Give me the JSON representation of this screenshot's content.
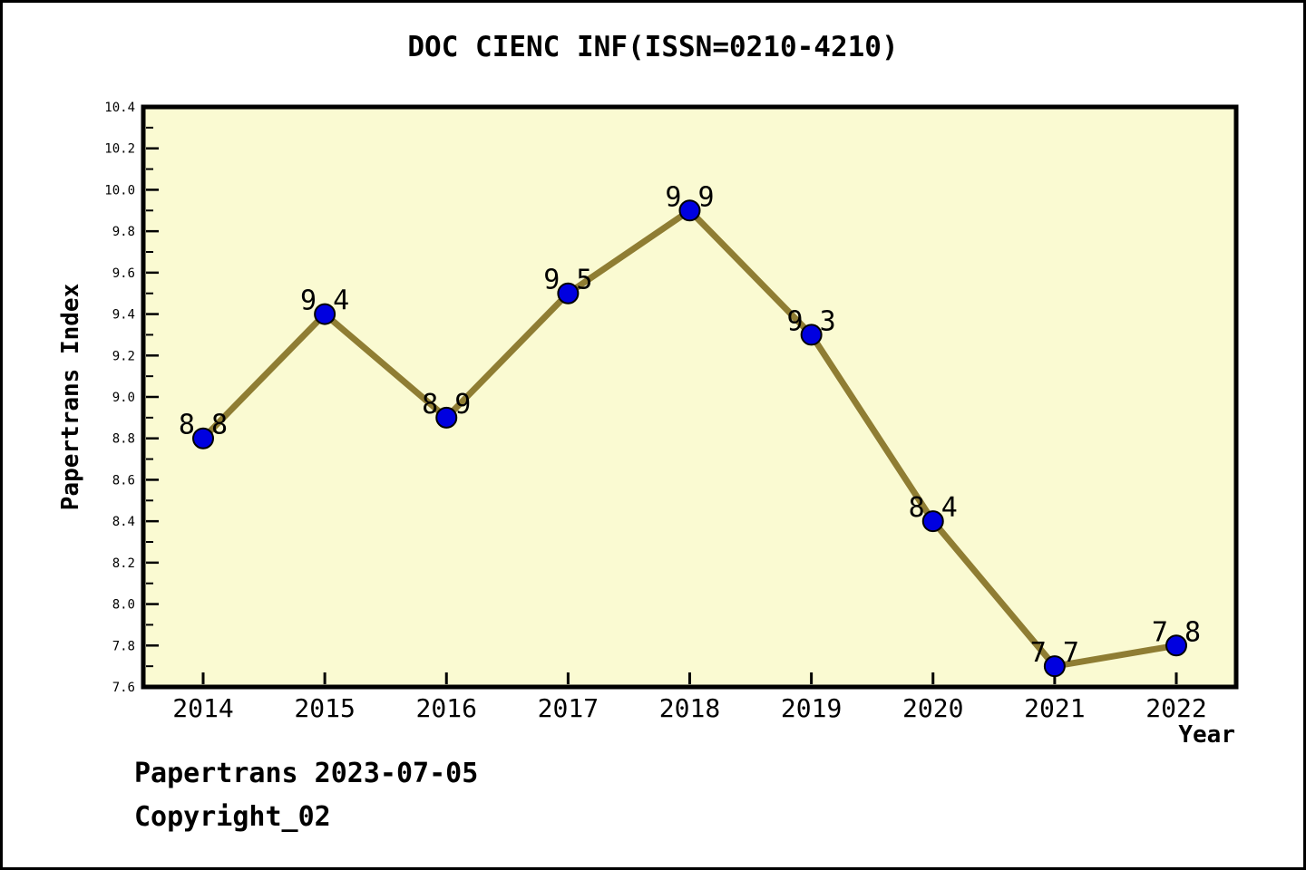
{
  "page": {
    "footer_line1": "Papertrans 2023-07-05",
    "footer_line2": "Copyright_02"
  },
  "chart_data": {
    "type": "line",
    "title": "DOC CIENC INF(ISSN=0210-4210)",
    "xlabel": "Year",
    "ylabel": "Papertrans Index",
    "categories": [
      "2014",
      "2015",
      "2016",
      "2017",
      "2018",
      "2019",
      "2020",
      "2021",
      "2022"
    ],
    "values": [
      8.8,
      9.4,
      8.9,
      9.5,
      9.9,
      9.3,
      8.4,
      7.7,
      7.8
    ],
    "point_labels": [
      "8.8",
      "9.4",
      "8.9",
      "9.5",
      "9.9",
      "9.3",
      "8.4",
      "7.7",
      "7.8"
    ],
    "ylim": [
      7.6,
      10.4
    ],
    "ytick_step": 0.2,
    "ytick_minor_step": 0.1,
    "ytick_labels": [
      "7.6",
      "7.8",
      "8.0",
      "8.2",
      "8.4",
      "8.6",
      "8.8",
      "9.0",
      "9.2",
      "9.4",
      "9.6",
      "9.8",
      "10.0",
      "10.2",
      "10.4"
    ],
    "grid": "off",
    "legend": "none",
    "colors": {
      "line": "#8F7D33",
      "marker": "#0000E0",
      "marker_edge": "#000000",
      "plot_bg": "#FAFAD2",
      "axis": "#000000",
      "text": "#000000",
      "page_bg": "#FFFFFF"
    }
  }
}
